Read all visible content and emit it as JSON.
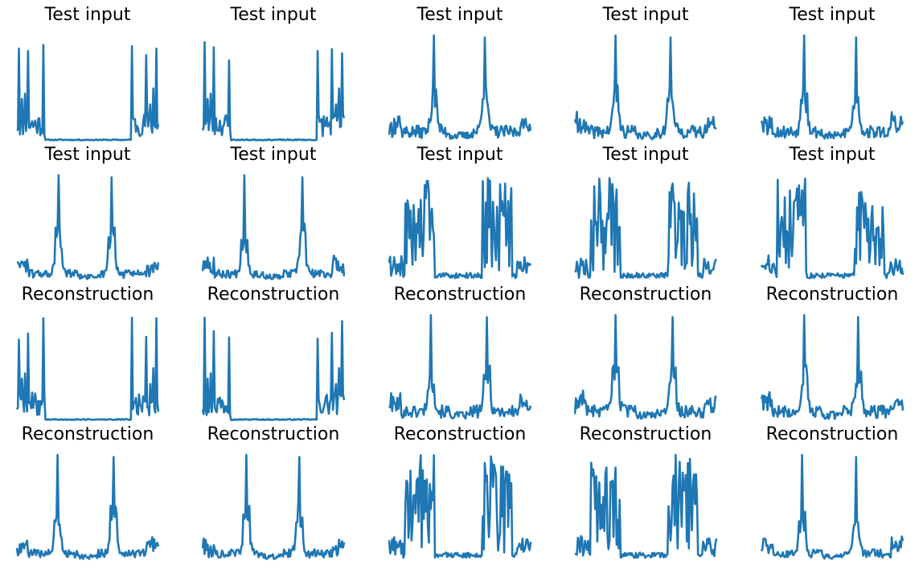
{
  "figure": {
    "line_color": "#1f77b4",
    "background": "#ffffff",
    "rows": 4,
    "columns": 5
  },
  "chart_data": [
    {
      "type": "line",
      "title": "Test input",
      "profile": "edge-spikes",
      "seed": 11
    },
    {
      "type": "line",
      "title": "Test input",
      "profile": "edge-spikes",
      "seed": 23
    },
    {
      "type": "line",
      "title": "Test input",
      "profile": "twin-peaks-noisy",
      "seed": 37
    },
    {
      "type": "line",
      "title": "Test input",
      "profile": "twin-peaks-noisy",
      "seed": 41
    },
    {
      "type": "line",
      "title": "Test input",
      "profile": "twin-peaks-noisy",
      "seed": 53
    },
    {
      "type": "line",
      "title": "Test input",
      "profile": "twin-peaks",
      "seed": 61
    },
    {
      "type": "line",
      "title": "Test input",
      "profile": "twin-peaks",
      "seed": 67
    },
    {
      "type": "line",
      "title": "Test input",
      "profile": "dense-clusters",
      "seed": 71
    },
    {
      "type": "line",
      "title": "Test input",
      "profile": "dense-clusters",
      "seed": 79
    },
    {
      "type": "line",
      "title": "Test input",
      "profile": "dense-clusters",
      "seed": 83
    },
    {
      "type": "line",
      "title": "Reconstruction",
      "profile": "edge-spikes",
      "seed": 89
    },
    {
      "type": "line",
      "title": "Reconstruction",
      "profile": "edge-spikes",
      "seed": 97
    },
    {
      "type": "line",
      "title": "Reconstruction",
      "profile": "twin-peaks-noisy",
      "seed": 101
    },
    {
      "type": "line",
      "title": "Reconstruction",
      "profile": "twin-peaks-noisy",
      "seed": 103
    },
    {
      "type": "line",
      "title": "Reconstruction",
      "profile": "twin-peaks-noisy",
      "seed": 107
    },
    {
      "type": "line",
      "title": "Reconstruction",
      "profile": "twin-peaks",
      "seed": 109
    },
    {
      "type": "line",
      "title": "Reconstruction",
      "profile": "twin-peaks",
      "seed": 113
    },
    {
      "type": "line",
      "title": "Reconstruction",
      "profile": "dense-clusters",
      "seed": 127
    },
    {
      "type": "line",
      "title": "Reconstruction",
      "profile": "dense-clusters",
      "seed": 131
    },
    {
      "type": "line",
      "title": "Reconstruction",
      "profile": "twin-peaks",
      "seed": 137
    }
  ]
}
